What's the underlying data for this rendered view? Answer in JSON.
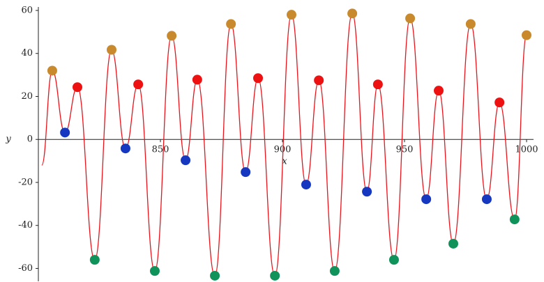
{
  "chart_data": {
    "type": "line",
    "x_label": "x",
    "y_label": "y",
    "xlim": [
      800,
      1000
    ],
    "ylim": [
      -66,
      60
    ],
    "xticks": [
      850,
      900,
      950,
      1000
    ],
    "yticks": [
      -60,
      -40,
      -20,
      0,
      20,
      40,
      60
    ],
    "series": [
      {
        "type": "line",
        "color": "#e8141c",
        "x": [
          801.4,
          805.7,
          810.9,
          816,
          823.1,
          830,
          835.7,
          840.9,
          847.7,
          854.6,
          860.3,
          865.1,
          872.3,
          878.9,
          884.9,
          890,
          896.9,
          903.7,
          909.7,
          914.9,
          921.4,
          928.6,
          934.6,
          939.1,
          945.7,
          952.3,
          958.9,
          964,
          970,
          977.1,
          983.7,
          988.9,
          995.1,
          1000
        ],
        "values": [
          -12,
          32,
          3.2,
          24.3,
          -56,
          41.7,
          -4.2,
          25.6,
          -61.2,
          48.2,
          -9.7,
          27.8,
          -63.4,
          53.7,
          -15.2,
          28.5,
          -63.4,
          58,
          -21,
          27.5,
          -61.2,
          58.6,
          -24.3,
          25.6,
          -56,
          56.3,
          -27.8,
          22.7,
          -48.5,
          53.7,
          -27.8,
          17.2,
          -37.2,
          48.5
        ]
      },
      {
        "type": "scatter",
        "color": "#c98a2e",
        "x": [
          805.7,
          830,
          854.6,
          878.9,
          903.7,
          928.6,
          952.3,
          977.1,
          1000
        ],
        "values": [
          32,
          41.7,
          48.2,
          53.7,
          58,
          58.6,
          56.3,
          53.7,
          48.5
        ]
      },
      {
        "type": "scatter",
        "color": "#ee1111",
        "x": [
          816,
          840.9,
          865.1,
          890,
          914.9,
          939.1,
          964,
          988.9
        ],
        "values": [
          24.3,
          25.6,
          27.8,
          28.5,
          27.5,
          25.6,
          22.7,
          17.2
        ]
      },
      {
        "type": "scatter",
        "color": "#1638c0",
        "x": [
          810.9,
          835.7,
          860.3,
          884.9,
          909.7,
          934.6,
          958.9,
          983.7
        ],
        "values": [
          3.2,
          -4.2,
          -9.7,
          -15.2,
          -21,
          -24.3,
          -27.8,
          -27.8
        ]
      },
      {
        "type": "scatter",
        "color": "#10935a",
        "x": [
          823.1,
          847.7,
          872.3,
          896.9,
          921.4,
          945.7,
          970,
          995.1
        ],
        "values": [
          -56,
          -61.2,
          -63.4,
          -63.4,
          -61.2,
          -56,
          -48.5,
          -37.2
        ]
      }
    ]
  }
}
